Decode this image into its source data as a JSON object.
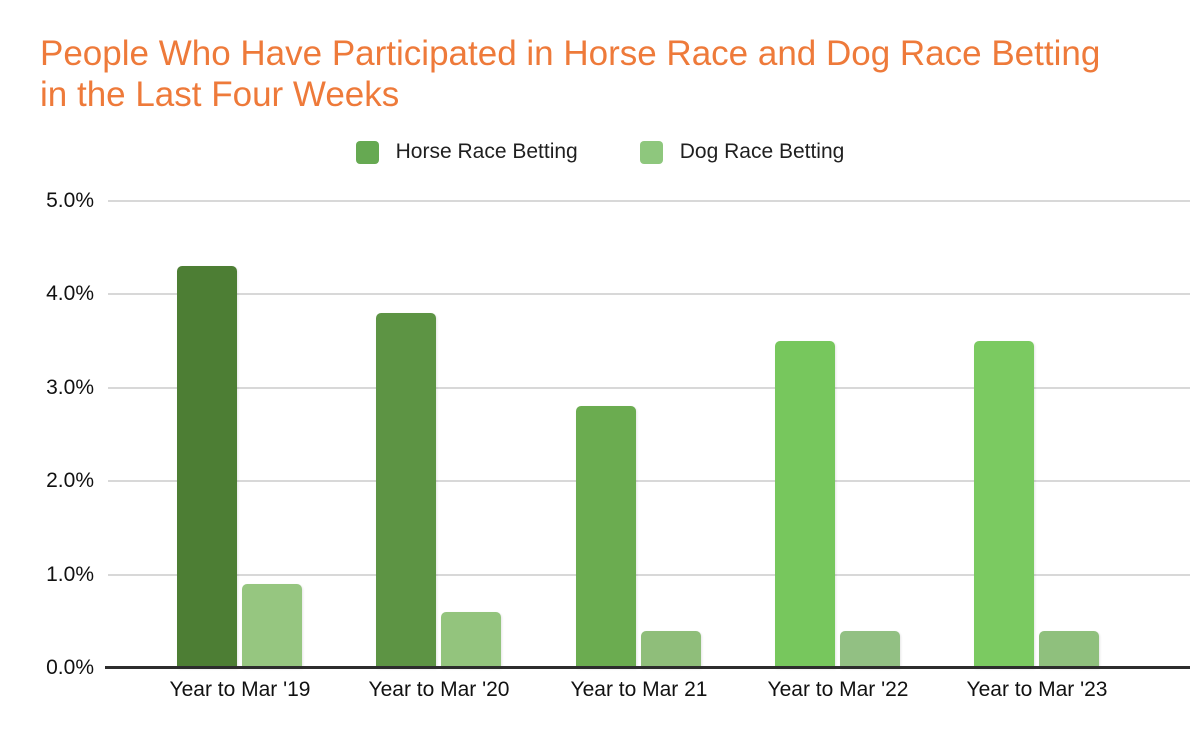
{
  "title": "People Who Have Participated in Horse Race and Dog Race Betting in the Last Four Weeks",
  "title_color": "#ee7a3a",
  "legend": {
    "items": [
      {
        "label": "Horse Race Betting",
        "color": "#66a952"
      },
      {
        "label": "Dog Race Betting",
        "color": "#8ec77d"
      }
    ]
  },
  "chart_data": {
    "type": "bar",
    "title": "People Who Have Participated in Horse Race and Dog Race Betting in the Last Four Weeks",
    "categories": [
      "Year to Mar '19",
      "Year to Mar '20",
      "Year to Mar 21",
      "Year to Mar '22",
      "Year to Mar '23"
    ],
    "series": [
      {
        "name": "Horse Race Betting",
        "values": [
          4.3,
          3.8,
          2.8,
          3.5,
          3.5
        ],
        "bar_colors": [
          "#4d7e34",
          "#5d9444",
          "#6bac50",
          "#77c75d",
          "#7bca61"
        ]
      },
      {
        "name": "Dog Race Betting",
        "values": [
          0.9,
          0.6,
          0.4,
          0.4,
          0.4
        ],
        "bar_colors": [
          "#96c680",
          "#93c47d",
          "#8fbe7a",
          "#92c083",
          "#8fc07d"
        ]
      }
    ],
    "xlabel": "",
    "ylabel": "",
    "ylim": [
      0,
      5
    ],
    "yticks": [
      "0.0%",
      "1.0%",
      "2.0%",
      "3.0%",
      "4.0%",
      "5.0%"
    ],
    "grid": true,
    "legend_position": "top"
  },
  "colors": {
    "gridline": "#d8d8d8",
    "axis_line": "#2d2d2d",
    "axis_text": "#111111"
  }
}
